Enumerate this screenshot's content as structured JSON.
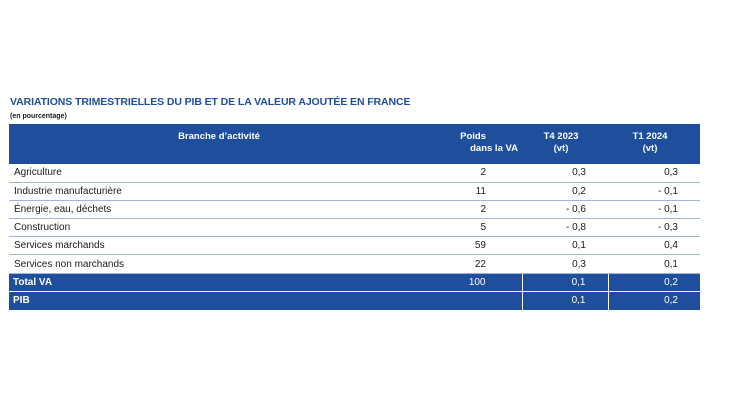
{
  "title": "VARIATIONS TRIMESTRIELLES DU PIB ET DE LA VALEUR AJOUTÉE EN FRANCE",
  "subtitle": "(en pourcentage)",
  "table": {
    "headers": {
      "branche": "Branche d’activité",
      "poids_l1": "Poids",
      "poids_l2": "dans la VA",
      "t4_l1": "T4 2023",
      "t4_l2": "(vt)",
      "t1_l1": "T1 2024",
      "t1_l2": "(vt)"
    },
    "rows": [
      {
        "label": "Agriculture",
        "poids": "2",
        "t4": "0,3",
        "t1": "0,3"
      },
      {
        "label": "Industrie manufacturière",
        "poids": "11",
        "t4": "0,2",
        "t1": "- 0,1"
      },
      {
        "label": "Énergie, eau, déchets",
        "poids": "2",
        "t4": "- 0,6",
        "t1": "- 0,1"
      },
      {
        "label": "Construction",
        "poids": "5",
        "t4": "- 0,8",
        "t1": "- 0,3"
      },
      {
        "label": "Services marchands",
        "poids": "59",
        "t4": "0,1",
        "t1": "0,4"
      },
      {
        "label": "Services non marchands",
        "poids": "22",
        "t4": "0,3",
        "t1": "0,1"
      }
    ],
    "totals": [
      {
        "label": "Total VA",
        "poids": "100",
        "t4": "0,1",
        "t1": "0,2"
      },
      {
        "label": "PIB",
        "poids": "",
        "t4": "0,1",
        "t1": "0,2"
      }
    ]
  }
}
